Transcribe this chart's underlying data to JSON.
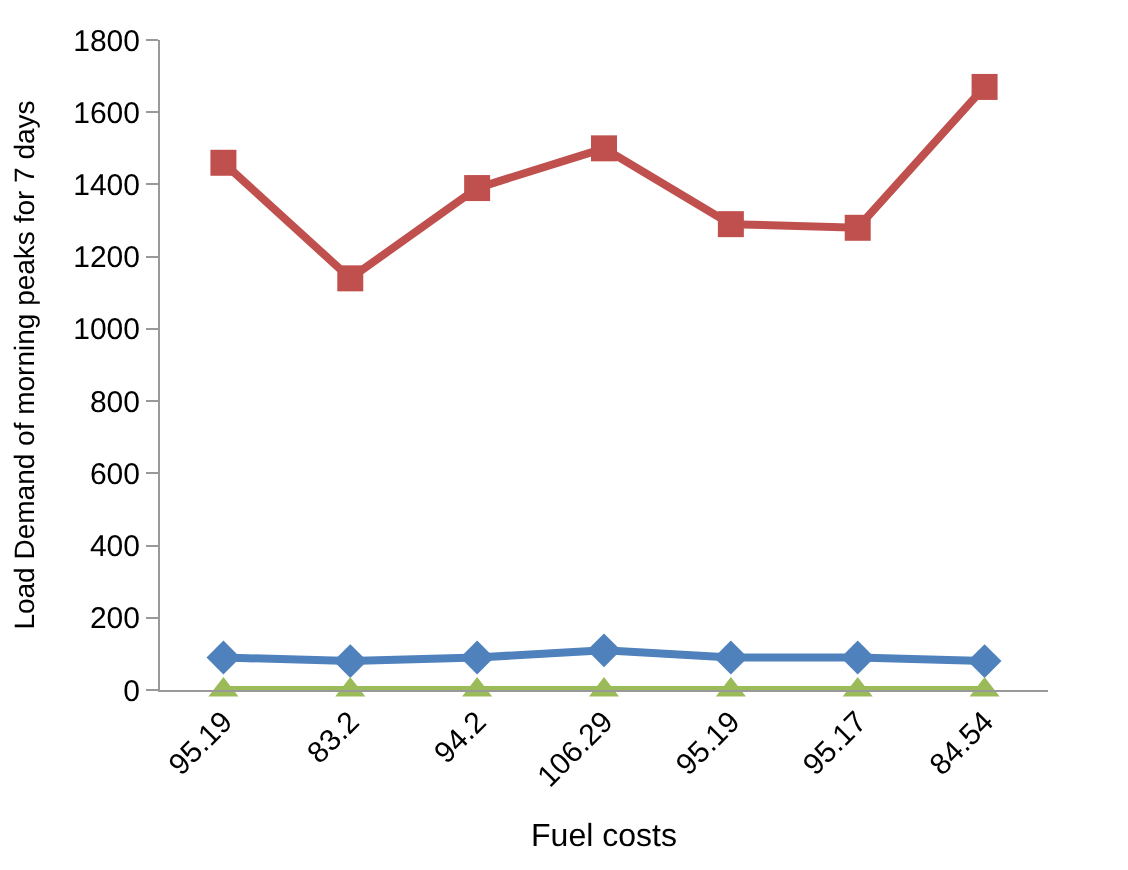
{
  "chart_data": {
    "type": "line",
    "xlabel": "Fuel costs",
    "ylabel": "Load Demand of morning peaks for 7 days",
    "categories": [
      "95.19",
      "83.2",
      "94.2",
      "106.29",
      "95.19",
      "95.17",
      "84.54"
    ],
    "series": [
      {
        "color": "#4f81bd",
        "marker": "diamond",
        "values": [
          90,
          80,
          90,
          110,
          90,
          90,
          80
        ]
      },
      {
        "color": "#c0504d",
        "marker": "square",
        "values": [
          1460,
          1140,
          1390,
          1500,
          1290,
          1280,
          1670
        ]
      },
      {
        "color": "#9bbb59",
        "marker": "triangle",
        "values": [
          0,
          0,
          0,
          0,
          0,
          0,
          0
        ]
      }
    ],
    "ylim": [
      0,
      1800
    ],
    "yticks": [
      0,
      200,
      400,
      600,
      800,
      1000,
      1200,
      1400,
      1600,
      1800
    ]
  }
}
